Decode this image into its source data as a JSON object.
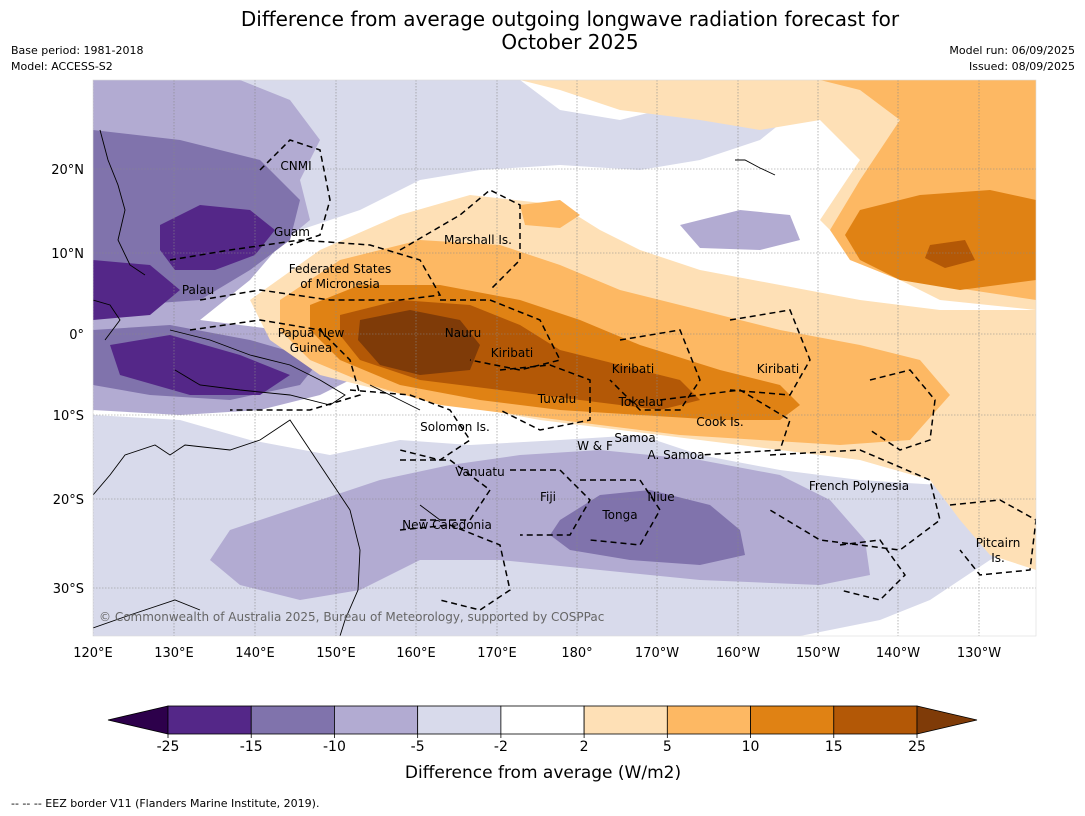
{
  "title_line1": "Difference from average outgoing longwave radiation forecast for",
  "title_line2": "October 2025",
  "meta_left": {
    "base_period": "Base period: 1981-2018",
    "model": "Model: ACCESS-S2"
  },
  "meta_right": {
    "model_run": "Model run: 06/09/2025",
    "issued": "Issued: 08/09/2025"
  },
  "lat_ticks": [
    "20°N",
    "10°N",
    "0°",
    "10°S",
    "20°S",
    "30°S"
  ],
  "lon_ticks": [
    "120°E",
    "130°E",
    "140°E",
    "150°E",
    "160°E",
    "170°E",
    "180°",
    "170°W",
    "160°W",
    "150°W",
    "140°W",
    "130°W"
  ],
  "region_labels": [
    "CNMI",
    "Guam",
    "Marshall Is.",
    "Federated States",
    "of Micronesia",
    "Palau",
    "Papua New",
    "Guinea",
    "Nauru",
    "Kiribati",
    "Kiribati",
    "Kiribati",
    "Tuvalu",
    "Tokelau",
    "Cook Is.",
    "Solomon Is.",
    "Samoa",
    "W & F",
    "A. Samoa",
    "Vanuatu",
    "Fiji",
    "Niue",
    "Tonga",
    "French Polynesia",
    "New Caledonia",
    "Pitcairn",
    "Is."
  ],
  "copyright": "© Commonwealth of Australia 2025, Bureau of Meteorology, supported by COSPPac",
  "colorbar": {
    "ticks": [
      "-25",
      "-15",
      "-10",
      "-5",
      "-2",
      "2",
      "5",
      "10",
      "15",
      "25"
    ],
    "colors": [
      "#2d004b",
      "#542788",
      "#8073ac",
      "#b2abd2",
      "#d8daeb",
      "#ffffff",
      "#fee0b6",
      "#fdb863",
      "#e08214",
      "#b35806",
      "#7f3b08"
    ],
    "label": "Difference from average (W/m2)"
  },
  "footnote": "--  --  -- EEZ border V11 (Flanders Marine Institute, 2019)."
}
